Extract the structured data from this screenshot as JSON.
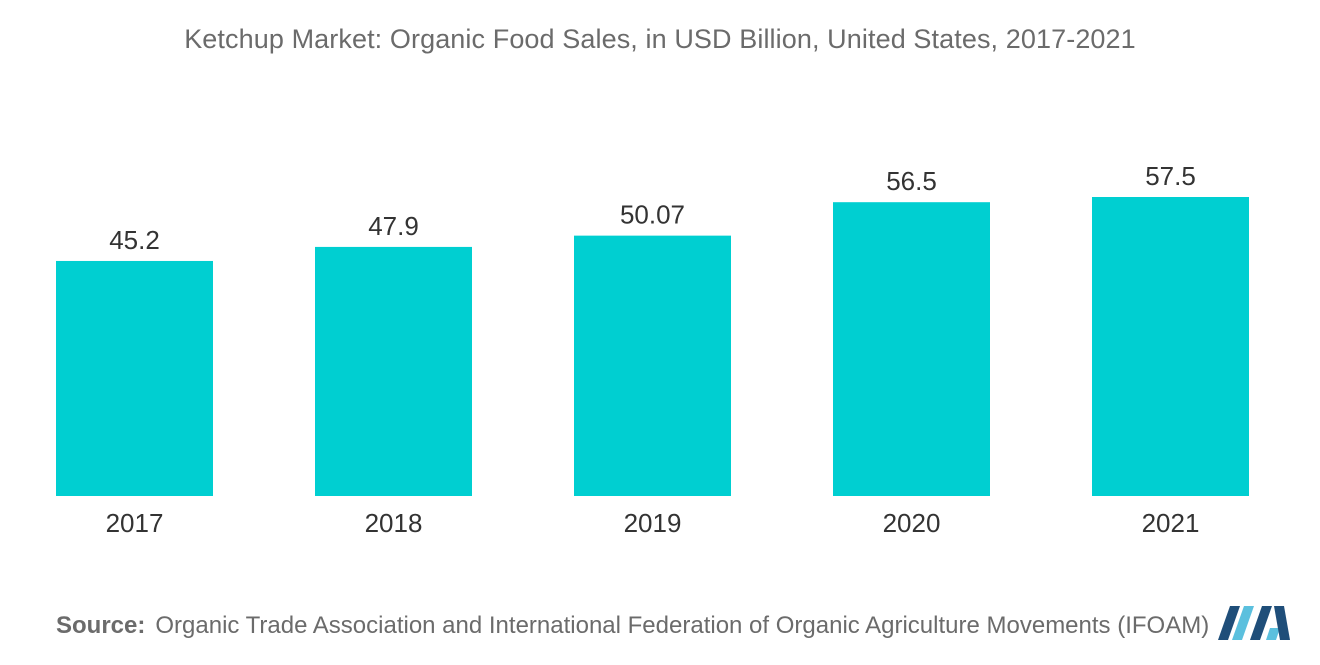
{
  "title": "Ketchup Market: Organic Food Sales, in USD Billion, United States, 2017-2021",
  "source": {
    "label": "Source:",
    "text": "Organic Trade Association and International Federation of Organic Agriculture Movements (IFOAM)"
  },
  "colors": {
    "bar": "#00cfd1",
    "text": "#6b6b6b",
    "value_text": "#333333",
    "axis": "#cccccc",
    "logo_dark": "#1f4e79",
    "logo_light": "#5bc0de"
  },
  "chart_data": {
    "type": "bar",
    "title": "Ketchup Market: Organic Food Sales, in USD Billion, United States, 2017-2021",
    "categories": [
      "2017",
      "2018",
      "2019",
      "2020",
      "2021"
    ],
    "values": [
      45.2,
      47.9,
      50.07,
      56.5,
      57.5
    ],
    "value_labels": [
      "45.2",
      "47.9",
      "50.07",
      "56.5",
      "57.5"
    ],
    "xlabel": "",
    "ylabel": "",
    "ylim": [
      0,
      64
    ],
    "grid": false,
    "legend": "none"
  }
}
